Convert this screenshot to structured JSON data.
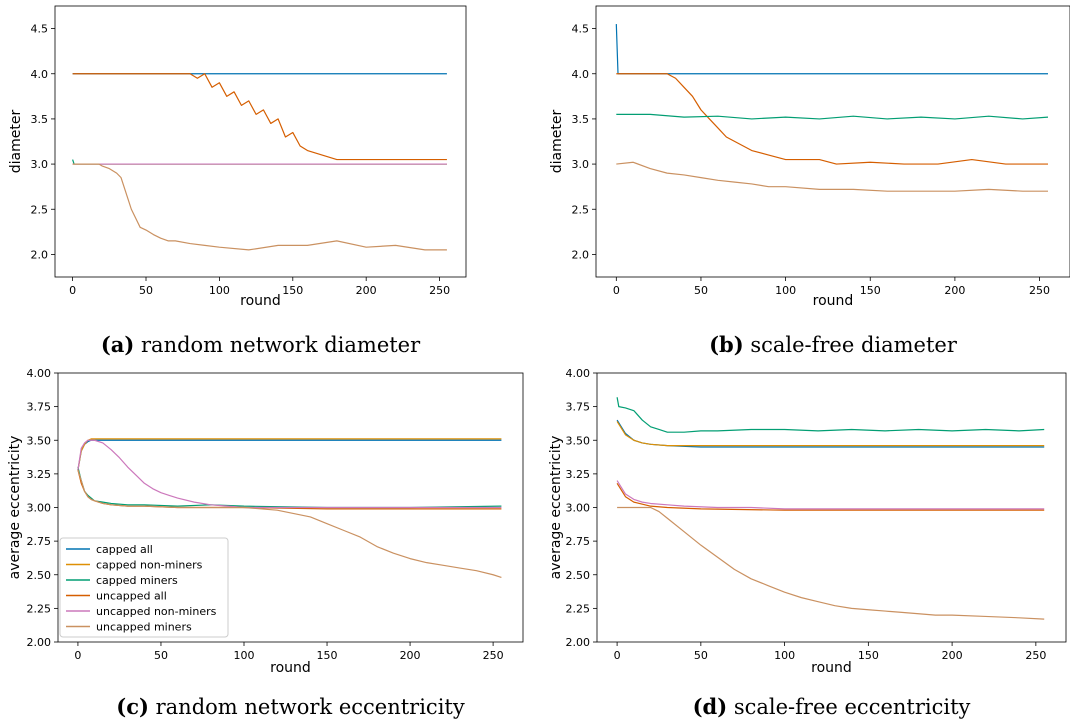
{
  "chart_data": [
    {
      "type": "line",
      "caption_letter": "(a)",
      "caption_text": "random network diameter",
      "xlabel": "round",
      "ylabel": "diameter",
      "xlim": [
        -12,
        268
      ],
      "ylim": [
        1.75,
        4.75
      ],
      "xticks": [
        0,
        50,
        100,
        150,
        200,
        250
      ],
      "yticks": [
        2.0,
        2.5,
        3.0,
        3.5,
        4.0,
        4.5
      ],
      "ytick_labels": [
        "2.0",
        "2.5",
        "3.0",
        "3.5",
        "4.0",
        "4.5"
      ],
      "series": [
        {
          "color": "#0173b2",
          "x": [
            0,
            255
          ],
          "y": [
            4.0,
            4.0
          ]
        },
        {
          "color": "#d55e00",
          "x": [
            0,
            80,
            85,
            90,
            95,
            100,
            105,
            110,
            115,
            120,
            125,
            130,
            135,
            140,
            145,
            150,
            155,
            160,
            170,
            180,
            190,
            200,
            210,
            220,
            230,
            240,
            250,
            255
          ],
          "y": [
            4.0,
            4.0,
            3.95,
            4.0,
            3.85,
            3.9,
            3.75,
            3.8,
            3.65,
            3.7,
            3.55,
            3.6,
            3.45,
            3.5,
            3.3,
            3.35,
            3.2,
            3.15,
            3.1,
            3.05,
            3.05,
            3.05,
            3.05,
            3.05,
            3.05,
            3.05,
            3.05,
            3.05
          ]
        },
        {
          "color": "#029e73",
          "x": [
            0,
            1,
            2,
            255
          ],
          "y": [
            3.05,
            3.0,
            3.0,
            3.0
          ]
        },
        {
          "color": "#de8f05",
          "x": [
            0,
            255
          ],
          "y": [
            3.0,
            3.0
          ]
        },
        {
          "color": "#cc78bc",
          "x": [
            0,
            255
          ],
          "y": [
            3.0,
            3.0
          ]
        },
        {
          "color": "#ca9161",
          "x": [
            0,
            18,
            20,
            25,
            30,
            33,
            36,
            38,
            40,
            43,
            46,
            50,
            55,
            60,
            65,
            70,
            80,
            90,
            100,
            120,
            140,
            160,
            180,
            200,
            220,
            240,
            255
          ],
          "y": [
            3.0,
            3.0,
            2.98,
            2.95,
            2.9,
            2.85,
            2.7,
            2.6,
            2.5,
            2.4,
            2.3,
            2.27,
            2.22,
            2.18,
            2.15,
            2.15,
            2.12,
            2.1,
            2.08,
            2.05,
            2.1,
            2.1,
            2.15,
            2.08,
            2.1,
            2.05,
            2.05
          ]
        }
      ]
    },
    {
      "type": "line",
      "caption_letter": "(b)",
      "caption_text": "scale-free diameter",
      "xlabel": "round",
      "ylabel": "diameter",
      "xlim": [
        -12,
        268
      ],
      "ylim": [
        1.75,
        4.75
      ],
      "xticks": [
        0,
        50,
        100,
        150,
        200,
        250
      ],
      "yticks": [
        2.0,
        2.5,
        3.0,
        3.5,
        4.0,
        4.5
      ],
      "ytick_labels": [
        "2.0",
        "2.5",
        "3.0",
        "3.5",
        "4.0",
        "4.5"
      ],
      "series": [
        {
          "color": "#0173b2",
          "x": [
            0,
            1,
            2,
            255
          ],
          "y": [
            4.55,
            4.0,
            4.0,
            4.0
          ]
        },
        {
          "color": "#d55e00",
          "x": [
            0,
            30,
            35,
            40,
            45,
            50,
            55,
            60,
            65,
            70,
            75,
            80,
            90,
            100,
            110,
            120,
            130,
            150,
            170,
            190,
            210,
            230,
            255
          ],
          "y": [
            4.0,
            4.0,
            3.95,
            3.85,
            3.75,
            3.6,
            3.5,
            3.4,
            3.3,
            3.25,
            3.2,
            3.15,
            3.1,
            3.05,
            3.05,
            3.05,
            3.0,
            3.02,
            3.0,
            3.0,
            3.05,
            3.0,
            3.0
          ]
        },
        {
          "color": "#029e73",
          "x": [
            0,
            20,
            40,
            60,
            80,
            100,
            120,
            140,
            160,
            180,
            200,
            220,
            240,
            255
          ],
          "y": [
            3.55,
            3.55,
            3.52,
            3.53,
            3.5,
            3.52,
            3.5,
            3.53,
            3.5,
            3.52,
            3.5,
            3.53,
            3.5,
            3.52
          ]
        },
        {
          "color": "#ca9161",
          "x": [
            0,
            10,
            20,
            30,
            40,
            50,
            60,
            70,
            80,
            90,
            100,
            120,
            140,
            160,
            180,
            200,
            220,
            240,
            255
          ],
          "y": [
            3.0,
            3.02,
            2.95,
            2.9,
            2.88,
            2.85,
            2.82,
            2.8,
            2.78,
            2.75,
            2.75,
            2.72,
            2.72,
            2.7,
            2.7,
            2.7,
            2.72,
            2.7,
            2.7
          ]
        }
      ]
    },
    {
      "type": "line",
      "caption_letter": "(c)",
      "caption_text": "random network eccentricity",
      "xlabel": "round",
      "ylabel": "average eccentricity",
      "xlim": [
        -12,
        268
      ],
      "ylim": [
        2.0,
        4.0
      ],
      "xticks": [
        0,
        50,
        100,
        150,
        200,
        250
      ],
      "yticks": [
        2.0,
        2.25,
        2.5,
        2.75,
        3.0,
        3.25,
        3.5,
        3.75,
        4.0
      ],
      "ytick_labels": [
        "2.00",
        "2.25",
        "2.50",
        "2.75",
        "3.00",
        "3.25",
        "3.50",
        "3.75",
        "4.00"
      ],
      "legend_position": "lower-left",
      "legend": [
        "capped all",
        "capped non-miners",
        "capped miners",
        "uncapped all",
        "uncapped non-miners",
        "uncapped miners"
      ],
      "series": [
        {
          "name": "capped all",
          "color": "#0173b2",
          "x": [
            0,
            2,
            4,
            6,
            8,
            10,
            255
          ],
          "y": [
            3.28,
            3.42,
            3.47,
            3.49,
            3.5,
            3.5,
            3.5
          ]
        },
        {
          "name": "capped non-miners",
          "color": "#de8f05",
          "x": [
            0,
            2,
            4,
            6,
            8,
            10,
            255
          ],
          "y": [
            3.28,
            3.42,
            3.47,
            3.5,
            3.51,
            3.51,
            3.51
          ]
        },
        {
          "name": "capped miners",
          "color": "#029e73",
          "x": [
            0,
            2,
            4,
            6,
            8,
            10,
            15,
            20,
            30,
            40,
            60,
            80,
            100,
            150,
            200,
            255
          ],
          "y": [
            3.3,
            3.2,
            3.12,
            3.09,
            3.07,
            3.05,
            3.04,
            3.03,
            3.02,
            3.02,
            3.01,
            3.02,
            3.01,
            3.0,
            3.0,
            3.01
          ]
        },
        {
          "name": "uncapped all",
          "color": "#d55e00",
          "x": [
            0,
            2,
            4,
            6,
            8,
            10,
            15,
            20,
            30,
            40,
            60,
            80,
            100,
            150,
            200,
            255
          ],
          "y": [
            3.28,
            3.18,
            3.12,
            3.08,
            3.06,
            3.05,
            3.03,
            3.02,
            3.01,
            3.01,
            3.0,
            3.0,
            3.0,
            2.99,
            2.99,
            2.99
          ]
        },
        {
          "name": "uncapped non-miners",
          "color": "#cc78bc",
          "x": [
            0,
            2,
            4,
            6,
            8,
            10,
            15,
            20,
            25,
            30,
            35,
            40,
            45,
            50,
            55,
            60,
            70,
            80,
            90,
            100,
            120,
            150,
            200,
            255
          ],
          "y": [
            3.28,
            3.44,
            3.48,
            3.5,
            3.5,
            3.5,
            3.48,
            3.43,
            3.37,
            3.3,
            3.24,
            3.18,
            3.14,
            3.11,
            3.09,
            3.07,
            3.04,
            3.02,
            3.01,
            3.0,
            3.0,
            3.0,
            3.0,
            3.0
          ]
        },
        {
          "name": "uncapped miners",
          "color": "#ca9161",
          "x": [
            0,
            2,
            4,
            6,
            8,
            10,
            15,
            20,
            30,
            40,
            60,
            80,
            100,
            120,
            140,
            150,
            160,
            170,
            180,
            190,
            200,
            210,
            220,
            230,
            240,
            250,
            255
          ],
          "y": [
            3.28,
            3.2,
            3.12,
            3.08,
            3.06,
            3.05,
            3.03,
            3.02,
            3.01,
            3.01,
            3.0,
            3.0,
            3.0,
            2.98,
            2.93,
            2.88,
            2.83,
            2.78,
            2.71,
            2.66,
            2.62,
            2.59,
            2.57,
            2.55,
            2.53,
            2.5,
            2.48
          ]
        }
      ]
    },
    {
      "type": "line",
      "caption_letter": "(d)",
      "caption_text": "scale-free eccentricity",
      "xlabel": "round",
      "ylabel": "average eccentricity",
      "xlim": [
        -12,
        268
      ],
      "ylim": [
        2.0,
        4.0
      ],
      "xticks": [
        0,
        50,
        100,
        150,
        200,
        250
      ],
      "yticks": [
        2.0,
        2.25,
        2.5,
        2.75,
        3.0,
        3.25,
        3.5,
        3.75,
        4.0
      ],
      "ytick_labels": [
        "2.00",
        "2.25",
        "2.50",
        "2.75",
        "3.00",
        "3.25",
        "3.50",
        "3.75",
        "4.00"
      ],
      "series": [
        {
          "name": "capped all",
          "color": "#0173b2",
          "x": [
            0,
            5,
            10,
            15,
            20,
            30,
            50,
            100,
            150,
            200,
            255
          ],
          "y": [
            3.65,
            3.55,
            3.5,
            3.48,
            3.47,
            3.46,
            3.45,
            3.45,
            3.45,
            3.45,
            3.45
          ]
        },
        {
          "name": "capped non-miners",
          "color": "#de8f05",
          "x": [
            0,
            5,
            10,
            15,
            20,
            30,
            50,
            100,
            150,
            200,
            255
          ],
          "y": [
            3.64,
            3.54,
            3.5,
            3.48,
            3.47,
            3.46,
            3.46,
            3.46,
            3.46,
            3.46,
            3.46
          ]
        },
        {
          "name": "capped miners",
          "color": "#029e73",
          "x": [
            0,
            1,
            5,
            10,
            15,
            20,
            25,
            30,
            40,
            50,
            60,
            80,
            100,
            120,
            140,
            160,
            180,
            200,
            220,
            240,
            255
          ],
          "y": [
            3.82,
            3.75,
            3.74,
            3.72,
            3.65,
            3.6,
            3.58,
            3.56,
            3.56,
            3.57,
            3.57,
            3.58,
            3.58,
            3.57,
            3.58,
            3.57,
            3.58,
            3.57,
            3.58,
            3.57,
            3.58
          ]
        },
        {
          "name": "uncapped all",
          "color": "#d55e00",
          "x": [
            0,
            5,
            10,
            20,
            30,
            50,
            100,
            150,
            200,
            255
          ],
          "y": [
            3.18,
            3.08,
            3.04,
            3.01,
            3.0,
            2.99,
            2.98,
            2.98,
            2.98,
            2.98
          ]
        },
        {
          "name": "uncapped non-miners",
          "color": "#cc78bc",
          "x": [
            0,
            5,
            10,
            15,
            20,
            30,
            40,
            60,
            80,
            100,
            150,
            200,
            255
          ],
          "y": [
            3.2,
            3.1,
            3.06,
            3.04,
            3.03,
            3.02,
            3.01,
            3.0,
            3.0,
            2.99,
            2.99,
            2.99,
            2.99
          ]
        },
        {
          "name": "uncapped miners",
          "color": "#ca9161",
          "x": [
            0,
            20,
            25,
            30,
            40,
            50,
            60,
            70,
            80,
            90,
            100,
            110,
            120,
            130,
            140,
            150,
            160,
            170,
            180,
            190,
            200,
            220,
            240,
            255
          ],
          "y": [
            3.0,
            3.0,
            2.97,
            2.92,
            2.82,
            2.72,
            2.63,
            2.54,
            2.47,
            2.42,
            2.37,
            2.33,
            2.3,
            2.27,
            2.25,
            2.24,
            2.23,
            2.22,
            2.21,
            2.2,
            2.2,
            2.19,
            2.18,
            2.17
          ]
        }
      ]
    }
  ]
}
